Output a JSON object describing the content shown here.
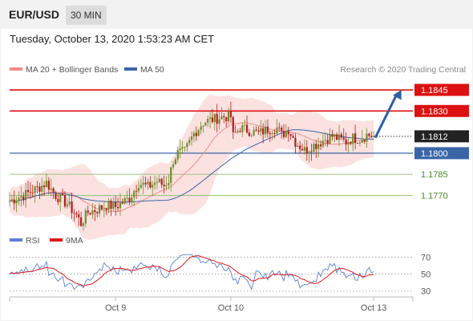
{
  "header": {
    "symbol": "EUR/USD",
    "timeframe": "30 MIN"
  },
  "datetime": "Tuesday, October 13, 2020 1:53:23 AM CET",
  "legend": [
    {
      "label": "MA 20 + Bollinger Bands",
      "color": "#f08c8c"
    },
    {
      "label": "MA 50",
      "color": "#3a66a8"
    }
  ],
  "credit": "Research © 2020 Trading Central",
  "colors": {
    "resistance": "#dd1111",
    "support": "#3a66a8",
    "target": "#4a8a2a",
    "bollinger": "#fcdcdc",
    "candle_up": "#6b8f2a",
    "candle_down": "#b41c1c",
    "rsi": "#5a82d2",
    "rsi_ma": "#e01818"
  },
  "chart_data": {
    "type": "line",
    "y_range": [
      1.1748,
      1.1853
    ],
    "x_ticks": [
      {
        "label": "Oct 9",
        "index": 46
      },
      {
        "label": "Oct 10",
        "index": 96
      },
      {
        "label": "Oct 13",
        "index": 158
      }
    ],
    "levels": [
      {
        "value": 1.1845,
        "label": "1.1845",
        "kind": "resistance"
      },
      {
        "value": 1.183,
        "label": "1.1830",
        "kind": "resistance"
      },
      {
        "value": 1.1812,
        "label": "1.1812",
        "kind": "last"
      },
      {
        "value": 1.18,
        "label": "1.1800",
        "kind": "support"
      },
      {
        "value": 1.1785,
        "label": "1.1785",
        "kind": "target"
      },
      {
        "value": 1.177,
        "label": "1.1770",
        "kind": "target"
      }
    ],
    "last_price": 1.1812,
    "close_anchors": [
      [
        0,
        1.1766
      ],
      [
        6,
        1.177
      ],
      [
        12,
        1.1775
      ],
      [
        16,
        1.1779
      ],
      [
        20,
        1.177
      ],
      [
        25,
        1.1764
      ],
      [
        29,
        1.1756
      ],
      [
        31,
        1.175
      ],
      [
        34,
        1.1758
      ],
      [
        38,
        1.176
      ],
      [
        42,
        1.1763
      ],
      [
        46,
        1.1762
      ],
      [
        52,
        1.1768
      ],
      [
        56,
        1.1779
      ],
      [
        60,
        1.1776
      ],
      [
        64,
        1.178
      ],
      [
        67,
        1.1777
      ],
      [
        69,
        1.1781
      ],
      [
        71,
        1.1795
      ],
      [
        73,
        1.18
      ],
      [
        76,
        1.1801
      ],
      [
        80,
        1.1814
      ],
      [
        84,
        1.1822
      ],
      [
        88,
        1.1824
      ],
      [
        93,
        1.1826
      ],
      [
        96,
        1.1826
      ],
      [
        97,
        1.1812
      ],
      [
        100,
        1.1818
      ],
      [
        104,
        1.1816
      ],
      [
        108,
        1.1814
      ],
      [
        112,
        1.1817
      ],
      [
        116,
        1.1818
      ],
      [
        118,
        1.1813
      ],
      [
        121,
        1.1817
      ],
      [
        124,
        1.1808
      ],
      [
        128,
        1.1802
      ],
      [
        131,
        1.1805
      ],
      [
        134,
        1.1807
      ],
      [
        137,
        1.181
      ],
      [
        140,
        1.1812
      ],
      [
        143,
        1.181
      ],
      [
        146,
        1.1808
      ],
      [
        149,
        1.1811
      ],
      [
        152,
        1.181
      ],
      [
        155,
        1.1813
      ],
      [
        158,
        1.1812
      ]
    ],
    "forecast_arrow": {
      "from": [
        158,
        1.1811
      ],
      "to": [
        170,
        1.1845
      ]
    },
    "rsi": {
      "legend": [
        {
          "label": "RSI",
          "color": "#5a82d2"
        },
        {
          "label": "9MA",
          "color": "#e01818"
        }
      ],
      "ticks": [
        {
          "value": 70,
          "label": "70"
        },
        {
          "value": 50,
          "label": "50"
        },
        {
          "value": 30,
          "label": "30"
        }
      ],
      "range": [
        25,
        78
      ]
    }
  }
}
